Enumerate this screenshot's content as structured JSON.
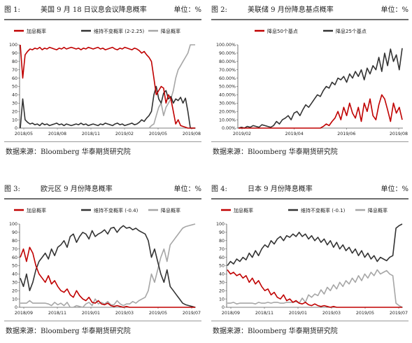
{
  "source_text": "数据来源：Bloomberg  华泰期货研究院",
  "panels": [
    {
      "fig_label": "图 1:",
      "title": "美国 9 月 18 日议息会议降息概率",
      "unit": "单位：%",
      "chart_data": {
        "type": "line",
        "yticks": [
          "0",
          "10",
          "20",
          "30",
          "40",
          "50",
          "60",
          "70",
          "80",
          "90",
          "100"
        ],
        "ylim": [
          0,
          100
        ],
        "xticks": [
          "2018/05",
          "2018/08",
          "2018/11",
          "2019/02",
          "2019/05",
          "2019/08"
        ],
        "series": [
          {
            "name": "加息概率",
            "color": "#c00000",
            "values": [
              100,
              60,
              88,
              92,
              95,
              94,
              96,
              95,
              97,
              94,
              96,
              95,
              97,
              96,
              95,
              94,
              96,
              95,
              97,
              95,
              96,
              97,
              96,
              95,
              96,
              94,
              96,
              95,
              97,
              96,
              95,
              96,
              97,
              95,
              96,
              94,
              95,
              96,
              97,
              95,
              94,
              96,
              95,
              97,
              96,
              95,
              94,
              96,
              95,
              93,
              90,
              92,
              88,
              85,
              80,
              60,
              40,
              45,
              50,
              48,
              30,
              40,
              35,
              20,
              5,
              10,
              3,
              2,
              1,
              0,
              0,
              0,
              0
            ]
          },
          {
            "name": "维持不变概率 (2-2.25)",
            "color": "#333333",
            "values": [
              0,
              35,
              10,
              7,
              5,
              6,
              4,
              5,
              3,
              6,
              4,
              5,
              3,
              4,
              5,
              6,
              4,
              5,
              3,
              5,
              4,
              3,
              4,
              5,
              4,
              6,
              4,
              5,
              3,
              4,
              5,
              4,
              3,
              5,
              4,
              6,
              5,
              4,
              3,
              5,
              6,
              4,
              5,
              3,
              4,
              5,
              6,
              4,
              5,
              7,
              10,
              8,
              12,
              15,
              20,
              40,
              50,
              35,
              30,
              42,
              45,
              35,
              38,
              30,
              35,
              33,
              37,
              30,
              36,
              20,
              0,
              0,
              0
            ]
          },
          {
            "name": "降息概率",
            "color": "#a6a6a6",
            "values": [
              0,
              0,
              0,
              0,
              0,
              0,
              0,
              0,
              0,
              0,
              0,
              0,
              0,
              0,
              0,
              0,
              0,
              0,
              0,
              0,
              0,
              0,
              0,
              0,
              0,
              0,
              0,
              0,
              0,
              0,
              0,
              0,
              0,
              0,
              0,
              0,
              0,
              0,
              0,
              0,
              0,
              0,
              0,
              0,
              0,
              0,
              0,
              0,
              0,
              0,
              0,
              0,
              0,
              0,
              3,
              5,
              15,
              25,
              30,
              15,
              25,
              30,
              35,
              45,
              60,
              70,
              75,
              80,
              85,
              90,
              100,
              100,
              100
            ]
          }
        ]
      }
    },
    {
      "fig_label": "图 2:",
      "title": "美联储 9 月份降息基点概率",
      "unit": "单位：%",
      "chart_data": {
        "type": "line",
        "yticks": [
          "0.00%",
          "10.00%",
          "20.00%",
          "30.00%",
          "40.00%",
          "50.00%",
          "60.00%",
          "70.00%",
          "80.00%",
          "90.00%",
          "100.00%"
        ],
        "ylim": [
          0,
          100
        ],
        "xticks": [
          "2019/02",
          "2019/04",
          "2019/06",
          "2019/08"
        ],
        "series": [
          {
            "name": "降息50个基点",
            "color": "#c00000",
            "values": [
              0,
              0,
              0,
              0,
              0,
              0,
              0,
              0,
              0,
              0,
              0,
              0,
              0,
              0,
              0,
              0,
              0,
              0,
              0,
              0,
              0,
              0,
              0,
              0,
              0,
              0,
              0,
              0,
              0,
              2,
              5,
              3,
              8,
              12,
              20,
              10,
              25,
              15,
              30,
              18,
              12,
              25,
              8,
              30,
              20,
              35,
              15,
              10,
              28,
              40,
              35,
              22,
              8,
              30,
              18,
              25,
              10
            ]
          },
          {
            "name": "降息25个基点",
            "color": "#333333",
            "values": [
              0,
              1,
              0,
              2,
              1,
              3,
              2,
              1,
              4,
              3,
              2,
              1,
              3,
              8,
              5,
              10,
              12,
              15,
              10,
              18,
              20,
              15,
              22,
              28,
              25,
              30,
              35,
              40,
              38,
              45,
              50,
              48,
              55,
              52,
              60,
              58,
              62,
              55,
              65,
              60,
              68,
              62,
              70,
              58,
              72,
              65,
              75,
              70,
              85,
              68,
              90,
              75,
              95,
              80,
              88,
              70,
              96
            ]
          }
        ]
      }
    },
    {
      "fig_label": "图 3:",
      "title": "欧元区 9 月份降息概率",
      "unit": "单位：%",
      "chart_data": {
        "type": "line",
        "yticks": [
          "0",
          "10",
          "20",
          "30",
          "40",
          "50",
          "60",
          "70",
          "80",
          "90",
          "100"
        ],
        "ylim": [
          0,
          100
        ],
        "xticks": [
          "2018/09",
          "2018/11",
          "2019/01",
          "2019/03",
          "2019/05",
          "2019/07"
        ],
        "series": [
          {
            "name": "加息概率",
            "color": "#c00000",
            "values": [
              60,
              70,
              55,
              72,
              65,
              50,
              40,
              35,
              30,
              38,
              28,
              32,
              25,
              20,
              18,
              22,
              15,
              12,
              20,
              14,
              10,
              8,
              12,
              6,
              5,
              8,
              4,
              3,
              5,
              2,
              1,
              2,
              1,
              0,
              1,
              0,
              0,
              0,
              0,
              0,
              0,
              0,
              0,
              0,
              0,
              0,
              0,
              0,
              0,
              0,
              0,
              0,
              0,
              0,
              0,
              0,
              0
            ]
          },
          {
            "name": "维持不变概率 (-0.4)",
            "color": "#333333",
            "values": [
              35,
              25,
              40,
              20,
              30,
              45,
              55,
              60,
              65,
              58,
              70,
              62,
              72,
              75,
              80,
              72,
              85,
              88,
              78,
              85,
              90,
              88,
              82,
              92,
              85,
              88,
              90,
              93,
              88,
              95,
              96,
              90,
              95,
              98,
              95,
              96,
              93,
              95,
              92,
              90,
              88,
              80,
              60,
              70,
              55,
              40,
              30,
              45,
              25,
              20,
              15,
              10,
              5,
              3,
              2,
              1,
              0
            ]
          },
          {
            "name": "降息概率",
            "color": "#a6a6a6",
            "values": [
              5,
              5,
              5,
              8,
              5,
              5,
              5,
              5,
              5,
              4,
              2,
              6,
              3,
              5,
              2,
              6,
              0,
              0,
              2,
              1,
              0,
              4,
              6,
              2,
              10,
              4,
              6,
              4,
              7,
              3,
              3,
              8,
              4,
              2,
              4,
              4,
              7,
              5,
              8,
              10,
              12,
              20,
              40,
              30,
              45,
              60,
              70,
              55,
              75,
              80,
              85,
              90,
              95,
              97,
              98,
              99,
              100
            ]
          }
        ]
      }
    },
    {
      "fig_label": "图 4:",
      "title": "日本 9 月份降息概率",
      "unit": "单位：%",
      "chart_data": {
        "type": "line",
        "yticks": [
          "0",
          "10",
          "20",
          "30",
          "40",
          "50",
          "60",
          "70",
          "80",
          "90",
          "100"
        ],
        "ylim": [
          0,
          100
        ],
        "xticks": [
          "2018/09",
          "2018/11",
          "2019/01",
          "2019/03",
          "2019/05",
          "2019/07"
        ],
        "series": [
          {
            "name": "加息概率",
            "color": "#c00000",
            "values": [
              45,
              40,
              42,
              38,
              40,
              35,
              38,
              30,
              35,
              28,
              32,
              25,
              20,
              22,
              15,
              18,
              12,
              10,
              15,
              8,
              10,
              6,
              8,
              5,
              4,
              6,
              3,
              2,
              4,
              2,
              1,
              2,
              1,
              0,
              1,
              0,
              0,
              0,
              0,
              0,
              0,
              0,
              0,
              0,
              0,
              0,
              0,
              0,
              0,
              0,
              0,
              0,
              0,
              0,
              0,
              0,
              0
            ]
          },
          {
            "name": "维持不变概率 (-0.1)",
            "color": "#333333",
            "values": [
              50,
              55,
              52,
              58,
              55,
              60,
              57,
              65,
              60,
              68,
              62,
              70,
              75,
              72,
              80,
              76,
              82,
              85,
              80,
              86,
              84,
              88,
              85,
              90,
              85,
              88,
              82,
              86,
              80,
              84,
              78,
              82,
              75,
              80,
              72,
              78,
              70,
              75,
              68,
              72,
              65,
              70,
              62,
              68,
              60,
              65,
              58,
              62,
              55,
              60,
              58,
              56,
              60,
              62,
              95,
              98,
              100
            ]
          },
          {
            "name": "降息概率",
            "color": "#a6a6a6",
            "values": [
              5,
              5,
              6,
              4,
              5,
              5,
              5,
              5,
              5,
              4,
              6,
              5,
              5,
              6,
              5,
              6,
              6,
              5,
              5,
              6,
              6,
              6,
              7,
              5,
              11,
              6,
              15,
              12,
              16,
              14,
              21,
              16,
              24,
              20,
              27,
              22,
              30,
              25,
              32,
              28,
              35,
              30,
              38,
              32,
              40,
              35,
              42,
              38,
              45,
              40,
              42,
              44,
              40,
              38,
              5,
              2,
              0
            ]
          }
        ]
      }
    }
  ]
}
